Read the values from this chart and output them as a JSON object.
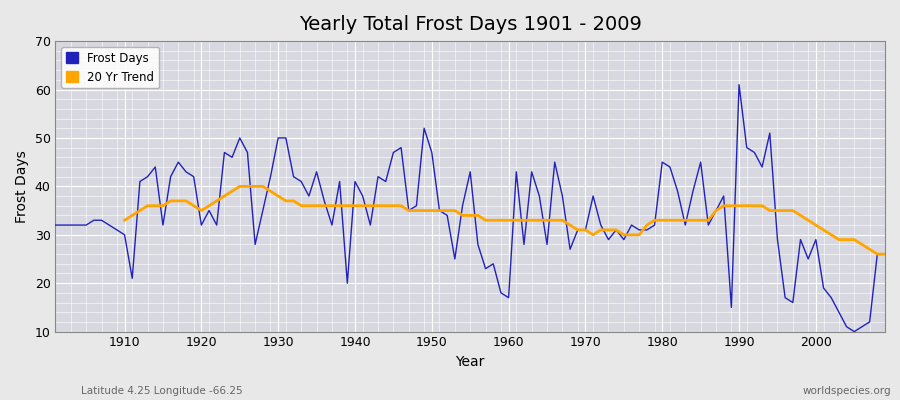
{
  "title": "Yearly Total Frost Days 1901 - 2009",
  "xlabel": "Year",
  "ylabel": "Frost Days",
  "subtitle": "Latitude 4.25 Longitude -66.25",
  "watermark": "worldspecies.org",
  "legend_frost": "Frost Days",
  "legend_trend": "20 Yr Trend",
  "frost_color": "#2222bb",
  "trend_color": "#FFA500",
  "bg_color": "#e8e8e8",
  "plot_bg_color": "#d8d8e0",
  "ylim": [
    10,
    70
  ],
  "yticks": [
    10,
    20,
    30,
    40,
    50,
    60,
    70
  ],
  "years": [
    1901,
    1902,
    1903,
    1904,
    1905,
    1906,
    1907,
    1908,
    1909,
    1910,
    1911,
    1912,
    1913,
    1914,
    1915,
    1916,
    1917,
    1918,
    1919,
    1920,
    1921,
    1922,
    1923,
    1924,
    1925,
    1926,
    1927,
    1928,
    1929,
    1930,
    1931,
    1932,
    1933,
    1934,
    1935,
    1936,
    1937,
    1938,
    1939,
    1940,
    1941,
    1942,
    1943,
    1944,
    1945,
    1946,
    1947,
    1948,
    1949,
    1950,
    1951,
    1952,
    1953,
    1954,
    1955,
    1956,
    1957,
    1958,
    1959,
    1960,
    1961,
    1962,
    1963,
    1964,
    1965,
    1966,
    1967,
    1968,
    1969,
    1970,
    1971,
    1972,
    1973,
    1974,
    1975,
    1976,
    1977,
    1978,
    1979,
    1980,
    1981,
    1982,
    1983,
    1984,
    1985,
    1986,
    1987,
    1988,
    1989,
    1990,
    1991,
    1992,
    1993,
    1994,
    1995,
    1996,
    1997,
    1998,
    1999,
    2000,
    2001,
    2002,
    2003,
    2004,
    2005,
    2006,
    2007,
    2008,
    2009
  ],
  "frost_days": [
    32,
    32,
    32,
    32,
    32,
    33,
    33,
    32,
    31,
    30,
    21,
    41,
    42,
    44,
    32,
    42,
    45,
    43,
    42,
    32,
    35,
    32,
    47,
    46,
    50,
    47,
    28,
    35,
    42,
    50,
    50,
    42,
    41,
    38,
    43,
    37,
    32,
    41,
    20,
    41,
    38,
    32,
    42,
    41,
    47,
    48,
    35,
    36,
    52,
    47,
    35,
    34,
    25,
    36,
    43,
    28,
    23,
    24,
    18,
    17,
    43,
    28,
    43,
    38,
    28,
    45,
    38,
    27,
    31,
    31,
    38,
    32,
    29,
    31,
    29,
    32,
    31,
    31,
    32,
    45,
    44,
    39,
    32,
    39,
    45,
    32,
    35,
    38,
    15,
    61,
    48,
    47,
    44,
    51,
    29,
    17,
    16,
    29,
    25,
    29,
    19,
    17,
    14,
    11,
    10,
    11,
    12,
    26,
    26
  ],
  "trend_years": [
    1910,
    1911,
    1912,
    1913,
    1914,
    1915,
    1916,
    1917,
    1918,
    1919,
    1920,
    1921,
    1922,
    1923,
    1924,
    1925,
    1926,
    1927,
    1928,
    1929,
    1930,
    1931,
    1932,
    1933,
    1934,
    1935,
    1936,
    1937,
    1938,
    1939,
    1940,
    1941,
    1942,
    1943,
    1944,
    1945,
    1946,
    1947,
    1948,
    1949,
    1950,
    1951,
    1952,
    1953,
    1954,
    1955,
    1956,
    1957,
    1958,
    1959,
    1960,
    1961,
    1962,
    1963,
    1964,
    1965,
    1966,
    1967,
    1968,
    1969,
    1970,
    1971,
    1972,
    1973,
    1974,
    1975,
    1976,
    1977,
    1978,
    1979,
    1980,
    1981,
    1982,
    1983,
    1984,
    1985,
    1986,
    1987,
    1988,
    1989,
    1990,
    1991,
    1992,
    1993,
    1994,
    1995,
    1996,
    1997,
    1998,
    1999,
    2000,
    2001,
    2002,
    2003,
    2004,
    2005,
    2006,
    2007,
    2008,
    2009
  ],
  "trend_values": [
    33,
    34,
    35,
    36,
    36,
    36,
    37,
    37,
    37,
    36,
    35,
    36,
    37,
    38,
    39,
    40,
    40,
    40,
    40,
    39,
    38,
    37,
    37,
    36,
    36,
    36,
    36,
    36,
    36,
    36,
    36,
    36,
    36,
    36,
    36,
    36,
    36,
    35,
    35,
    35,
    35,
    35,
    35,
    35,
    34,
    34,
    34,
    33,
    33,
    33,
    33,
    33,
    33,
    33,
    33,
    33,
    33,
    33,
    32,
    31,
    31,
    30,
    31,
    31,
    31,
    30,
    30,
    30,
    32,
    33,
    33,
    33,
    33,
    33,
    33,
    33,
    33,
    35,
    36,
    36,
    36,
    36,
    36,
    36,
    35,
    35,
    35,
    35,
    34,
    33,
    32,
    31,
    30,
    29,
    29,
    29,
    28,
    27,
    26,
    26
  ]
}
